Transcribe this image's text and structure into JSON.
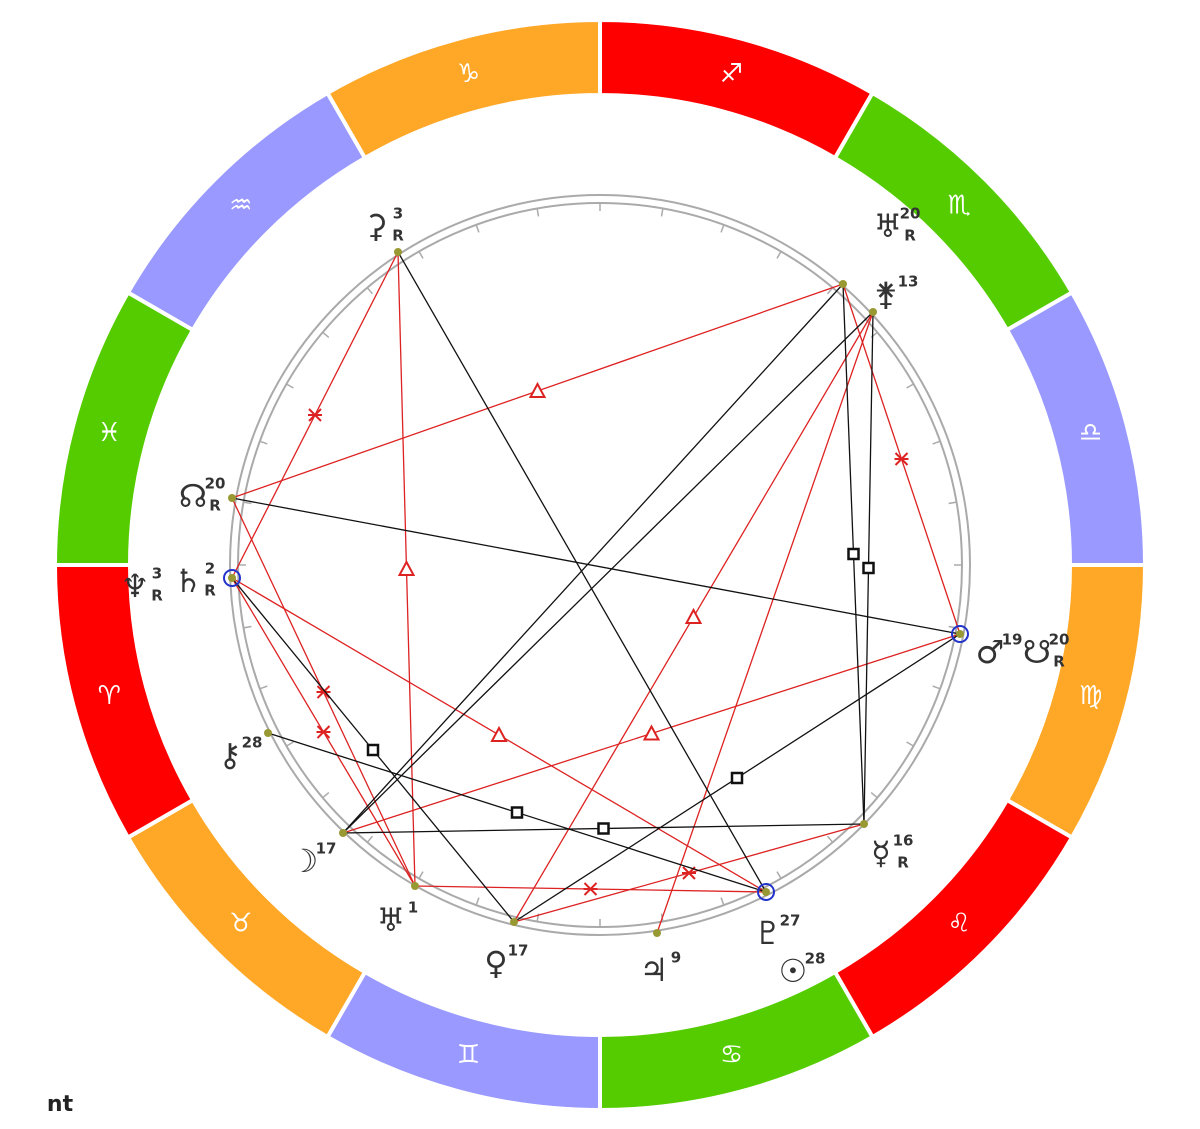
{
  "zodiac": [
    {
      "glyph": "♐",
      "color": "#ff0000"
    },
    {
      "glyph": "♏",
      "color": "#55cc00"
    },
    {
      "glyph": "♎",
      "color": "#9999ff"
    },
    {
      "glyph": "♍",
      "color": "#ffa726"
    },
    {
      "glyph": "♌",
      "color": "#ff0000"
    },
    {
      "glyph": "♋",
      "color": "#55cc00"
    },
    {
      "glyph": "♊",
      "color": "#9999ff"
    },
    {
      "glyph": "♉",
      "color": "#ffa726"
    },
    {
      "glyph": "♈",
      "color": "#ff0000"
    },
    {
      "glyph": "♓",
      "color": "#55cc00"
    },
    {
      "glyph": "♒",
      "color": "#9999ff"
    },
    {
      "glyph": "♑",
      "color": "#ffa726"
    }
  ],
  "points": [
    {
      "bodies": [
        {
          "glyph": "⚳",
          "degree": 3,
          "retro": "R"
        }
      ]
    },
    {
      "bodies": [
        {
          "glyph": "♅",
          "degree": 20,
          "retro": "R"
        }
      ]
    },
    {
      "bodies": [
        {
          "glyph": "⚵",
          "degree": 13
        }
      ]
    },
    {
      "bodies": [
        {
          "glyph": "☊",
          "degree": 20,
          "retro": "R"
        }
      ]
    },
    {
      "bodies": [
        {
          "glyph": "♆",
          "degree": 3,
          "retro": "R"
        },
        {
          "glyph": "♄",
          "degree": 2,
          "retro": "R"
        }
      ]
    },
    {
      "bodies": [
        {
          "glyph": "♂",
          "degree": 19
        },
        {
          "glyph": "☋",
          "degree": 20,
          "retro": "R"
        }
      ]
    },
    {
      "bodies": [
        {
          "glyph": "⚷",
          "degree": 28
        }
      ]
    },
    {
      "bodies": [
        {
          "glyph": "☽",
          "degree": 17
        }
      ]
    },
    {
      "bodies": [
        {
          "glyph": "♅",
          "degree": 1
        }
      ]
    },
    {
      "bodies": [
        {
          "glyph": "♀",
          "degree": 17
        }
      ]
    },
    {
      "bodies": [
        {
          "glyph": "♃",
          "degree": 9
        }
      ]
    },
    {
      "bodies": [
        {
          "glyph": "♇",
          "degree": 27
        },
        {
          "glyph": "☉",
          "degree": 28
        }
      ]
    },
    {
      "bodies": [
        {
          "glyph": "☿",
          "degree": 16,
          "retro": "R"
        }
      ]
    }
  ],
  "footer": "nt"
}
